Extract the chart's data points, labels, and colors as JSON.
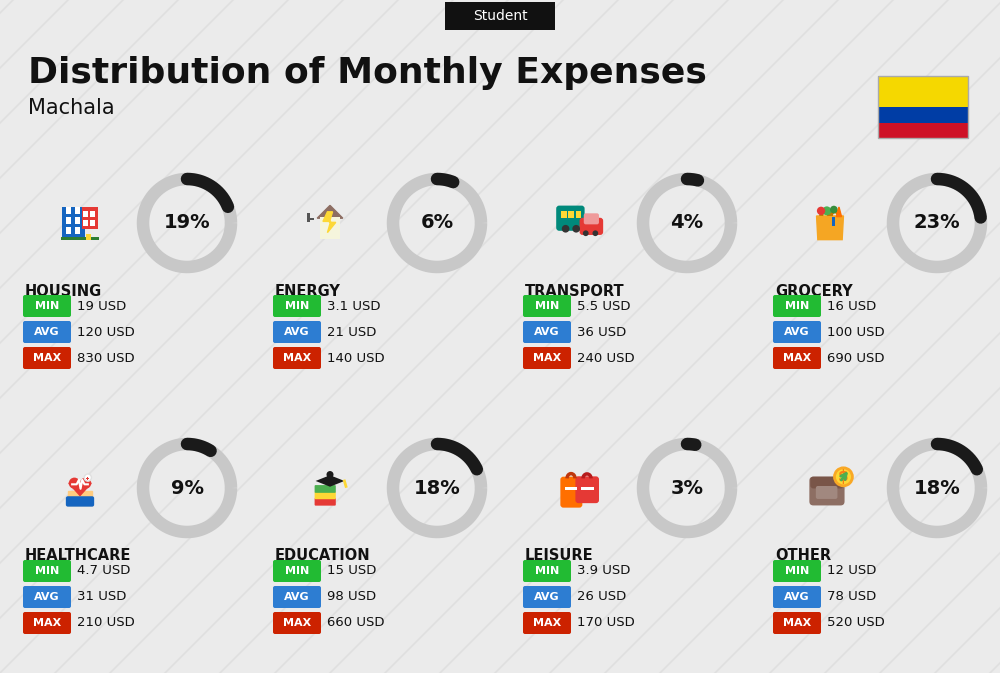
{
  "title": "Distribution of Monthly Expenses",
  "subtitle": "Student",
  "city": "Machala",
  "bg_color": "#ebebeb",
  "categories": [
    {
      "name": "HOUSING",
      "pct": 19,
      "min": "19 USD",
      "avg": "120 USD",
      "max": "830 USD",
      "col": 0,
      "row": 0
    },
    {
      "name": "ENERGY",
      "pct": 6,
      "min": "3.1 USD",
      "avg": "21 USD",
      "max": "140 USD",
      "col": 1,
      "row": 0
    },
    {
      "name": "TRANSPORT",
      "pct": 4,
      "min": "5.5 USD",
      "avg": "36 USD",
      "max": "240 USD",
      "col": 2,
      "row": 0
    },
    {
      "name": "GROCERY",
      "pct": 23,
      "min": "16 USD",
      "avg": "100 USD",
      "max": "690 USD",
      "col": 3,
      "row": 0
    },
    {
      "name": "HEALTHCARE",
      "pct": 9,
      "min": "4.7 USD",
      "avg": "31 USD",
      "max": "210 USD",
      "col": 0,
      "row": 1
    },
    {
      "name": "EDUCATION",
      "pct": 18,
      "min": "15 USD",
      "avg": "98 USD",
      "max": "660 USD",
      "col": 1,
      "row": 1
    },
    {
      "name": "LEISURE",
      "pct": 3,
      "min": "3.9 USD",
      "avg": "26 USD",
      "max": "170 USD",
      "col": 2,
      "row": 1
    },
    {
      "name": "OTHER",
      "pct": 18,
      "min": "12 USD",
      "avg": "78 USD",
      "max": "520 USD",
      "col": 3,
      "row": 1
    }
  ],
  "min_color": "#22bb33",
  "avg_color": "#2d7dd2",
  "max_color": "#cc2200",
  "dark_color": "#111111",
  "flag_yellow": "#F5D800",
  "flag_blue": "#003DA5",
  "flag_red": "#CE1126"
}
